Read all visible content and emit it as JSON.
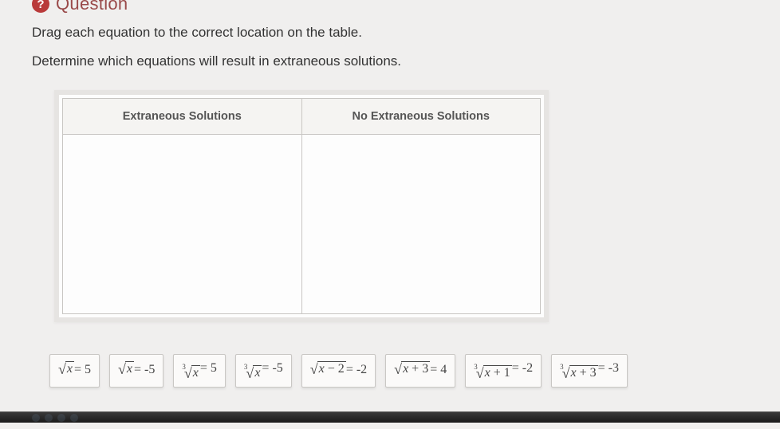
{
  "header": {
    "icon_glyph": "?",
    "title": "Question"
  },
  "instructions": {
    "line1": "Drag each equation to the correct location on the table.",
    "line2": "Determine which equations will result in extraneous solutions."
  },
  "table": {
    "col1_header": "Extraneous Solutions",
    "col2_header": "No Extraneous Solutions"
  },
  "tiles": [
    {
      "root_index": "",
      "radicand": "x",
      "rhs": " = 5"
    },
    {
      "root_index": "",
      "radicand": "x",
      "rhs": " = -5"
    },
    {
      "root_index": "3",
      "radicand": "x",
      "rhs": " = 5"
    },
    {
      "root_index": "3",
      "radicand": "x",
      "rhs": " = -5"
    },
    {
      "root_index": "",
      "radicand": "x − 2",
      "rhs": " = -2"
    },
    {
      "root_index": "",
      "radicand": "x + 3",
      "rhs": " = 4"
    },
    {
      "root_index": "3",
      "radicand": "x + 1",
      "rhs": " = -2"
    },
    {
      "root_index": "3",
      "radicand": "x + 3",
      "rhs": " = -3"
    }
  ],
  "colors": {
    "page_bg": "#f0efee",
    "title_color": "#9a4a4a",
    "icon_bg": "#b93a3a",
    "tile_bg": "#fbfaf9",
    "tile_border": "#c9c7c4",
    "table_border": "#c8c6c3"
  }
}
